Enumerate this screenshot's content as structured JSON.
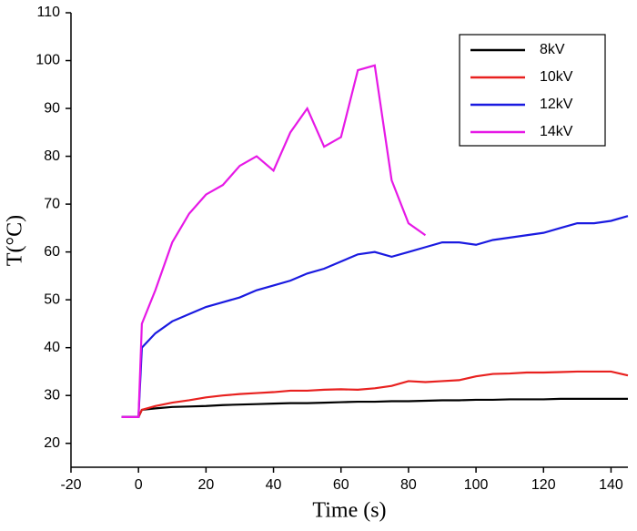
{
  "chart_data": {
    "type": "line",
    "xlabel": "Time (s)",
    "ylabel": "T(°C)",
    "x": [
      -5,
      0,
      1,
      5,
      10,
      15,
      20,
      25,
      30,
      35,
      40,
      45,
      50,
      55,
      60,
      65,
      70,
      75,
      80,
      85,
      90,
      95,
      100,
      105,
      110,
      115,
      120,
      125,
      130,
      135,
      140,
      145
    ],
    "series": [
      {
        "name": "8kV",
        "color": "#000000",
        "values": [
          25.5,
          25.5,
          27,
          27.3,
          27.6,
          27.7,
          27.8,
          28,
          28.1,
          28.2,
          28.3,
          28.4,
          28.4,
          28.5,
          28.6,
          28.7,
          28.7,
          28.8,
          28.8,
          28.9,
          29,
          29,
          29.1,
          29.1,
          29.2,
          29.2,
          29.2,
          29.3,
          29.3,
          29.3,
          29.3,
          29.3
        ]
      },
      {
        "name": "10kV",
        "color": "#e8211f",
        "values": [
          25.5,
          25.5,
          27,
          27.8,
          28.5,
          29,
          29.6,
          30,
          30.3,
          30.5,
          30.7,
          31,
          31,
          31.2,
          31.3,
          31.2,
          31.5,
          32,
          33,
          32.8,
          33,
          33.2,
          34,
          34.5,
          34.6,
          34.8,
          34.8,
          34.9,
          35,
          35,
          35,
          34.2
        ]
      },
      {
        "name": "12kV",
        "color": "#1a1ae0",
        "values": [
          25.5,
          25.5,
          40,
          43,
          45.5,
          47,
          48.5,
          49.5,
          50.5,
          52,
          53,
          54,
          55.5,
          56.5,
          58,
          59.5,
          60,
          59,
          60,
          61,
          62,
          62,
          61.5,
          62.5,
          63,
          63.5,
          64,
          65,
          66,
          66,
          66.5,
          67.5
        ]
      },
      {
        "name": "14kV",
        "color": "#e619e6",
        "values": [
          25.5,
          25.5,
          45,
          52,
          62,
          68,
          72,
          74,
          78,
          80,
          77,
          85,
          90,
          82,
          84,
          98,
          99,
          75,
          66,
          63.5,
          null,
          null,
          null,
          null,
          null,
          null,
          null,
          null,
          null,
          null,
          null,
          null
        ]
      }
    ],
    "xlim": [
      -20,
      145
    ],
    "xticks": [
      -20,
      0,
      20,
      40,
      60,
      80,
      100,
      120,
      140
    ],
    "ylim": [
      15,
      110
    ],
    "yticks": [
      20,
      30,
      40,
      50,
      60,
      70,
      80,
      90,
      100,
      110
    ],
    "grid": false,
    "legend": "upper right"
  }
}
